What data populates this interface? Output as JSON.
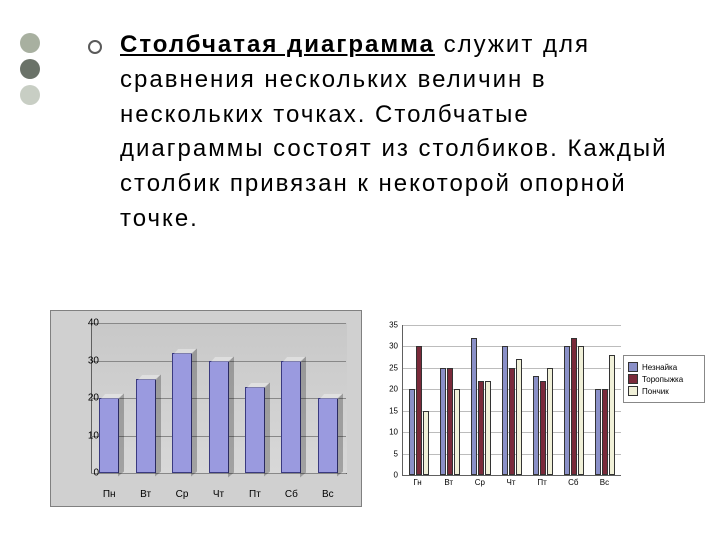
{
  "side_dots": {
    "colors": [
      "#a8b0a0",
      "#6a7268",
      "#c8cec4"
    ]
  },
  "text": {
    "term": "Столбчатая диаграмма",
    "rest": " служит для сравнения нескольких величин в нескольких точках. Столбчатые диаграммы состоят из столбиков. Каждый столбик привязан к некоторой опорной точке."
  },
  "chart1": {
    "type": "bar",
    "categories": [
      "Пн",
      "Вт",
      "Ср",
      "Чт",
      "Пт",
      "Сб",
      "Вс"
    ],
    "values": [
      20,
      25,
      32,
      30,
      23,
      30,
      20
    ],
    "ylim": [
      0,
      40
    ],
    "ytick_step": 10,
    "bar_color": "#9a9adf",
    "background_color": "#d0d0d0",
    "grid_color": "#888888",
    "label_fontsize": 10
  },
  "chart2": {
    "type": "grouped-bar",
    "categories": [
      "Гн",
      "Вт",
      "Ср",
      "Чт",
      "Пт",
      "Сб",
      "Вс"
    ],
    "series": [
      {
        "name": "Незнайка",
        "color": "#8a90c8",
        "values": [
          20,
          25,
          32,
          30,
          23,
          30,
          20
        ]
      },
      {
        "name": "Торопыжка",
        "color": "#7a2a3a",
        "values": [
          30,
          25,
          22,
          25,
          22,
          32,
          20
        ]
      },
      {
        "name": "Пончик",
        "color": "#f0f0d8",
        "values": [
          15,
          20,
          22,
          27,
          25,
          30,
          28
        ]
      }
    ],
    "ylim": [
      0,
      35
    ],
    "ytick_step": 5,
    "background_color": "#ffffff",
    "grid_color": "#bcbcbc",
    "label_fontsize": 8
  }
}
